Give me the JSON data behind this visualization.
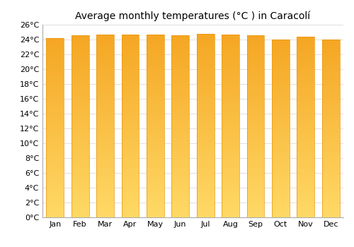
{
  "title": "Average monthly temperatures (°C ) in Caracolí",
  "months": [
    "Jan",
    "Feb",
    "Mar",
    "Apr",
    "May",
    "Jun",
    "Jul",
    "Aug",
    "Sep",
    "Oct",
    "Nov",
    "Dec"
  ],
  "temperatures": [
    24.2,
    24.6,
    24.7,
    24.7,
    24.7,
    24.6,
    24.8,
    24.7,
    24.6,
    24.0,
    24.4,
    24.0
  ],
  "ylim": [
    0,
    26
  ],
  "yticks": [
    0,
    2,
    4,
    6,
    8,
    10,
    12,
    14,
    16,
    18,
    20,
    22,
    24,
    26
  ],
  "bar_color_top": "#F5A623",
  "bar_color_bottom": "#FFD966",
  "bar_edge_color": "#E8960A",
  "background_color": "#ffffff",
  "grid_color": "#e0e0e0",
  "title_fontsize": 10,
  "tick_fontsize": 8,
  "bar_width": 0.7
}
